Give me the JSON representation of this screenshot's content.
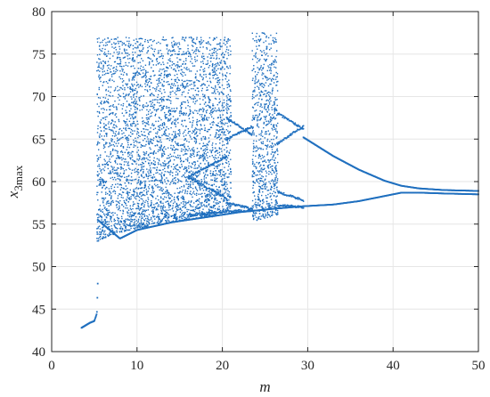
{
  "chart_data": {
    "type": "scatter",
    "title": "",
    "xlabel": "m",
    "ylabel_main": "x",
    "ylabel_sub": "3max",
    "xlim": [
      0,
      50
    ],
    "ylim": [
      40,
      80
    ],
    "grid": true,
    "xticks": [
      0,
      10,
      20,
      30,
      40,
      50
    ],
    "yticks": [
      40,
      45,
      50,
      55,
      60,
      65,
      70,
      75,
      80
    ],
    "xtick_labels": [
      "0",
      "10",
      "20",
      "30",
      "40",
      "50"
    ],
    "ytick_labels": [
      "40",
      "45",
      "50",
      "55",
      "60",
      "65",
      "70",
      "75",
      "80"
    ],
    "point_color": "#1f6fbf",
    "series": [
      {
        "kind": "scatter",
        "points_description": "bifurcation diagram of local maxima of x3 versus parameter m",
        "segments": [
          {
            "kind": "branch",
            "x": [
              3.5,
              4.0,
              4.5,
              5.0,
              5.3,
              5.4
            ],
            "y": [
              42.8,
              43.1,
              43.4,
              43.6,
              44.5,
              48.0
            ]
          },
          {
            "kind": "chaotic_band",
            "x_range": [
              5.3,
              20.0
            ],
            "y_lower_at_start": 52.5,
            "y_lower_at_end": 56.0,
            "y_upper": 77.0
          },
          {
            "kind": "chaotic_band",
            "x_range": [
              20.0,
              21.0
            ],
            "y_lower_at_start": 56.5,
            "y_lower_at_end": 56.8,
            "y_upper": 77.0
          },
          {
            "kind": "window_orbit",
            "x_range": [
              16.0,
              20.5
            ],
            "branches": [
              [
                60.5,
                63.0
              ],
              [
                60.5,
                58.0
              ],
              [
                56.0,
                56.5
              ]
            ]
          },
          {
            "kind": "window_orbit",
            "x_range": [
              20.5,
              23.5
            ],
            "branches": [
              [
                67.5,
                65.5
              ],
              [
                65.0,
                66.5
              ],
              [
                57.5,
                56.8
              ],
              [
                56.5,
                56.6
              ]
            ]
          },
          {
            "kind": "chaotic_band",
            "x_range": [
              23.5,
              26.5
            ],
            "y_lower_at_start": 55.0,
            "y_lower_at_end": 56.0,
            "y_upper": 77.5
          },
          {
            "kind": "window_orbit",
            "x_range": [
              26.5,
              29.5
            ],
            "branches": [
              [
                68.0,
                66.2
              ],
              [
                64.5,
                66.5
              ],
              [
                58.8,
                57.8
              ],
              [
                57.2,
                57.0
              ]
            ]
          },
          {
            "kind": "branch",
            "x": [
              29.5,
              33,
              36,
              39,
              41,
              43,
              46,
              50
            ],
            "y": [
              65.2,
              63.0,
              61.4,
              60.1,
              59.5,
              59.2,
              59.0,
              58.9
            ]
          },
          {
            "kind": "branch",
            "x": [
              29.5,
              33,
              36,
              39,
              41,
              43,
              46,
              50
            ],
            "y": [
              57.1,
              57.3,
              57.7,
              58.3,
              58.7,
              58.7,
              58.6,
              58.5
            ]
          },
          {
            "kind": "branch",
            "x": [
              5.4,
              8,
              10,
              14,
              18,
              22,
              26,
              29.5
            ],
            "y": [
              55.5,
              53.3,
              54.3,
              55.2,
              55.8,
              56.4,
              56.8,
              57.1
            ]
          }
        ]
      }
    ]
  }
}
